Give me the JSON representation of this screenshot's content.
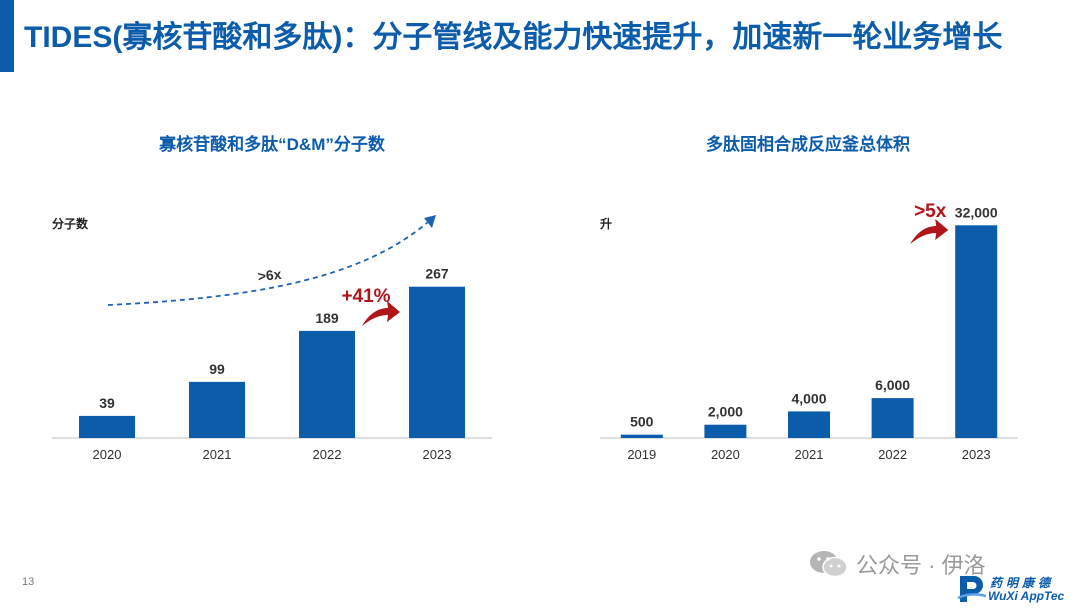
{
  "slide": {
    "title": "TIDES(寡核苷酸和多肽)：分子管线及能力快速提升，加速新一轮业务增长",
    "page_number": "13",
    "watermark": "公众号 · 伊洛",
    "logo_cn": "药明康德",
    "logo_en": "WuXi AppTec",
    "accent_color": "#0b5cab",
    "highlight_color": "#b0151a"
  },
  "chart_data": [
    {
      "type": "bar",
      "title": "寡核苷酸和多肽“D&M”分子数",
      "ylabel": "分子数",
      "categories": [
        "2020",
        "2021",
        "2022",
        "2023"
      ],
      "values": [
        39,
        99,
        189,
        267
      ],
      "data_labels": [
        "39",
        "99",
        "189",
        "267"
      ],
      "ylim": [
        0,
        300
      ],
      "grid": false,
      "bar_color": "#0b5cab",
      "annotations": [
        {
          "text": ">6x",
          "style": "dashed-trend-arrow",
          "color": "#1f63b0"
        },
        {
          "text": "+41%",
          "between": [
            "2022",
            "2023"
          ],
          "style": "curved-arrow",
          "color": "#b0151a"
        }
      ]
    },
    {
      "type": "bar",
      "title": "多肽固相合成反应釜总体积",
      "ylabel": "升",
      "categories": [
        "2019",
        "2020",
        "2021",
        "2022",
        "2023"
      ],
      "values": [
        500,
        2000,
        4000,
        6000,
        32000
      ],
      "data_labels": [
        "500",
        "2,000",
        "4,000",
        "6,000",
        "32,000"
      ],
      "ylim": [
        0,
        34000
      ],
      "grid": false,
      "bar_color": "#0b5cab",
      "annotations": [
        {
          "text": ">5x",
          "between": [
            "2022",
            "2023"
          ],
          "style": "curved-arrow",
          "color": "#b0151a"
        }
      ]
    }
  ]
}
